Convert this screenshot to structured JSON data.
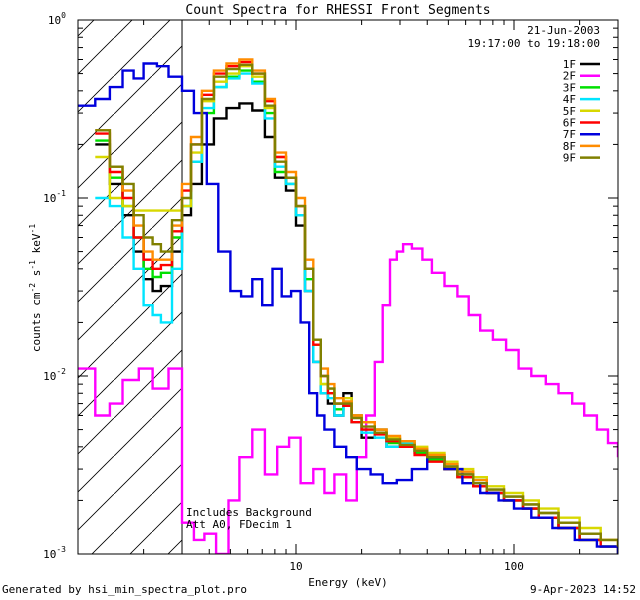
{
  "chart_data": {
    "type": "line",
    "title": "Count Spectra for RHESSI Front Segments",
    "xlabel": "Energy (keV)",
    "ylabel": "counts cm",
    "ylabel_sup1": "-2",
    "ylabel_mid": " s",
    "ylabel_sup2": "-1",
    "ylabel_mid2": " keV",
    "ylabel_sup3": "-1",
    "xscale": "log",
    "yscale": "log",
    "xlim": [
      1.0,
      300.0
    ],
    "ylim": [
      0.001,
      1.0
    ],
    "x_ticks": [
      {
        "value": 10,
        "label": "10"
      },
      {
        "value": 100,
        "label": "100"
      }
    ],
    "y_ticks": [
      {
        "value": 0.001,
        "base": "10",
        "exp": "-3"
      },
      {
        "value": 0.01,
        "base": "10",
        "exp": "-2"
      },
      {
        "value": 0.1,
        "base": "10",
        "exp": "-1"
      },
      {
        "value": 1.0,
        "base": "10",
        "exp": "0"
      }
    ],
    "date": "21-Jun-2003",
    "time_range": "19:17:00 to 19:18:00",
    "annotation_line1": "Includes Background",
    "annotation_line2": "Att A0, FDecim 1",
    "hatched_region_keV": [
      1.0,
      3.0
    ],
    "series": [
      {
        "name": "1F",
        "color": "#000000",
        "x": [
          1.2,
          1.4,
          1.6,
          1.8,
          2.0,
          2.2,
          2.4,
          2.7,
          3.0,
          3.3,
          3.7,
          4.2,
          4.8,
          5.5,
          6.3,
          7.2,
          8.0,
          9.0,
          10.0,
          11.0,
          12.0,
          13.0,
          14.0,
          15.0,
          16.5,
          18.0,
          20.0,
          23.0,
          26.0,
          30.0,
          35.0,
          40.0,
          48.0,
          55.0,
          65.0,
          75.0,
          90.0,
          110.0,
          130.0,
          160.0,
          200.0,
          250.0,
          300.0
        ],
        "y": [
          0.2,
          0.12,
          0.08,
          0.05,
          0.035,
          0.03,
          0.032,
          0.05,
          0.08,
          0.12,
          0.2,
          0.28,
          0.32,
          0.34,
          0.31,
          0.22,
          0.13,
          0.11,
          0.07,
          0.03,
          0.012,
          0.008,
          0.007,
          0.006,
          0.008,
          0.006,
          0.0045,
          0.005,
          0.004,
          0.0042,
          0.0038,
          0.0035,
          0.003,
          0.0028,
          0.0025,
          0.0022,
          0.002,
          0.0018,
          0.0016,
          0.0014,
          0.0012,
          0.0011,
          0.001
        ]
      },
      {
        "name": "2F",
        "color": "#ff00ff",
        "x": [
          1.0,
          1.2,
          1.4,
          1.6,
          1.9,
          2.2,
          2.6,
          3.0,
          3.4,
          3.8,
          4.3,
          4.9,
          5.5,
          6.3,
          7.2,
          8.2,
          9.3,
          10.5,
          12.0,
          13.5,
          15.0,
          17.0,
          19.0,
          21.0,
          23.0,
          25.0,
          27.0,
          29.0,
          31.0,
          34.0,
          38.0,
          42.0,
          48.0,
          55.0,
          62.0,
          70.0,
          80.0,
          92.0,
          105.0,
          120.0,
          140.0,
          160.0,
          185.0,
          210.0,
          240.0,
          270.0,
          300.0
        ],
        "y": [
          0.011,
          0.006,
          0.007,
          0.0095,
          0.011,
          0.0085,
          0.011,
          0.0015,
          0.0012,
          0.0013,
          0.001,
          0.002,
          0.0035,
          0.005,
          0.0028,
          0.004,
          0.0045,
          0.0025,
          0.003,
          0.0022,
          0.0028,
          0.002,
          0.0035,
          0.006,
          0.012,
          0.025,
          0.045,
          0.05,
          0.055,
          0.052,
          0.045,
          0.038,
          0.032,
          0.028,
          0.022,
          0.018,
          0.016,
          0.014,
          0.011,
          0.01,
          0.009,
          0.008,
          0.007,
          0.006,
          0.005,
          0.0042,
          0.0035
        ]
      },
      {
        "name": "3F",
        "color": "#00e000",
        "x": [
          1.2,
          1.4,
          1.6,
          1.8,
          2.0,
          2.2,
          2.4,
          2.7,
          3.0,
          3.3,
          3.7,
          4.2,
          4.8,
          5.5,
          6.3,
          7.2,
          8.0,
          9.0,
          10.0,
          11.0,
          12.0,
          13.0,
          14.0,
          15.0,
          16.5,
          18.0,
          20.0,
          23.0,
          26.0,
          30.0,
          35.0,
          40.0,
          48.0,
          55.0,
          65.0,
          75.0,
          90.0,
          110.0,
          130.0,
          160.0,
          200.0,
          250.0,
          300.0
        ],
        "y": [
          0.21,
          0.13,
          0.09,
          0.06,
          0.04,
          0.036,
          0.038,
          0.06,
          0.09,
          0.16,
          0.3,
          0.42,
          0.48,
          0.52,
          0.45,
          0.3,
          0.14,
          0.12,
          0.08,
          0.035,
          0.015,
          0.009,
          0.008,
          0.0065,
          0.007,
          0.0055,
          0.005,
          0.0048,
          0.0042,
          0.004,
          0.0037,
          0.0034,
          0.003,
          0.0027,
          0.0024,
          0.0022,
          0.002,
          0.0018,
          0.0016,
          0.0014,
          0.0012,
          0.0011,
          0.001
        ]
      },
      {
        "name": "4F",
        "color": "#00e5ff",
        "x": [
          1.2,
          1.4,
          1.6,
          1.8,
          2.0,
          2.2,
          2.4,
          2.7,
          3.0,
          3.3,
          3.7,
          4.2,
          4.8,
          5.5,
          6.3,
          7.2,
          8.0,
          9.0,
          10.0,
          11.0,
          12.0,
          13.0,
          14.0,
          15.0,
          16.5,
          18.0,
          20.0,
          23.0,
          26.0,
          30.0,
          35.0,
          40.0,
          48.0,
          55.0,
          65.0,
          75.0,
          90.0,
          110.0,
          130.0,
          160.0,
          200.0,
          250.0,
          300.0
        ],
        "y": [
          0.1,
          0.09,
          0.06,
          0.04,
          0.025,
          0.022,
          0.02,
          0.04,
          0.09,
          0.16,
          0.32,
          0.42,
          0.47,
          0.5,
          0.44,
          0.28,
          0.15,
          0.12,
          0.08,
          0.03,
          0.012,
          0.008,
          0.0075,
          0.006,
          0.007,
          0.0055,
          0.0048,
          0.0045,
          0.004,
          0.0042,
          0.0038,
          0.0036,
          0.0032,
          0.0029,
          0.0026,
          0.0023,
          0.0021,
          0.0019,
          0.0017,
          0.0015,
          0.0013,
          0.0011,
          0.001
        ]
      },
      {
        "name": "5F",
        "color": "#d8d800",
        "x": [
          1.2,
          1.4,
          1.6,
          1.8,
          2.0,
          2.2,
          2.4,
          2.7,
          3.0,
          3.3,
          3.7,
          4.2,
          4.8,
          5.5,
          6.3,
          7.2,
          8.0,
          9.0,
          10.0,
          11.0,
          12.0,
          13.0,
          14.0,
          15.0,
          16.5,
          18.0,
          20.0,
          23.0,
          26.0,
          30.0,
          35.0,
          40.0,
          48.0,
          55.0,
          65.0,
          75.0,
          90.0,
          110.0,
          130.0,
          160.0,
          200.0,
          250.0,
          300.0
        ],
        "y": [
          0.17,
          0.1,
          0.09,
          0.085,
          0.085,
          0.085,
          0.085,
          0.085,
          0.09,
          0.18,
          0.35,
          0.45,
          0.5,
          0.55,
          0.48,
          0.32,
          0.17,
          0.13,
          0.09,
          0.04,
          0.015,
          0.009,
          0.0085,
          0.007,
          0.0075,
          0.006,
          0.0055,
          0.005,
          0.0045,
          0.0043,
          0.004,
          0.0037,
          0.0033,
          0.003,
          0.0027,
          0.0024,
          0.0022,
          0.002,
          0.0018,
          0.0016,
          0.0014,
          0.0012,
          0.0011
        ]
      },
      {
        "name": "6F",
        "color": "#ff0000",
        "x": [
          1.2,
          1.4,
          1.6,
          1.8,
          2.0,
          2.2,
          2.4,
          2.7,
          3.0,
          3.3,
          3.7,
          4.2,
          4.8,
          5.5,
          6.3,
          7.2,
          8.0,
          9.0,
          10.0,
          11.0,
          12.0,
          13.0,
          14.0,
          15.0,
          16.5,
          18.0,
          20.0,
          23.0,
          26.0,
          30.0,
          35.0,
          40.0,
          48.0,
          55.0,
          65.0,
          75.0,
          90.0,
          110.0,
          130.0,
          160.0,
          200.0,
          250.0,
          300.0
        ],
        "y": [
          0.23,
          0.14,
          0.1,
          0.06,
          0.045,
          0.04,
          0.042,
          0.065,
          0.11,
          0.2,
          0.38,
          0.5,
          0.55,
          0.58,
          0.5,
          0.35,
          0.17,
          0.13,
          0.09,
          0.04,
          0.015,
          0.01,
          0.008,
          0.007,
          0.0068,
          0.0055,
          0.005,
          0.0047,
          0.0043,
          0.004,
          0.0036,
          0.0033,
          0.003,
          0.0027,
          0.0024,
          0.0022,
          0.002,
          0.0018,
          0.0016,
          0.0014,
          0.0012,
          0.0011,
          0.001
        ]
      },
      {
        "name": "7F",
        "color": "#0000dd",
        "x": [
          1.0,
          1.2,
          1.4,
          1.6,
          1.8,
          2.0,
          2.3,
          2.6,
          3.0,
          3.4,
          3.9,
          4.4,
          5.0,
          5.6,
          6.3,
          7.0,
          7.8,
          8.6,
          9.5,
          10.5,
          11.5,
          12.5,
          13.5,
          15.0,
          17.0,
          19.0,
          22.0,
          25.0,
          29.0,
          34.0,
          40.0,
          48.0,
          58.0,
          70.0,
          85.0,
          100.0,
          120.0,
          150.0,
          190.0,
          240.0,
          300.0
        ],
        "y": [
          0.33,
          0.36,
          0.42,
          0.52,
          0.47,
          0.57,
          0.55,
          0.48,
          0.4,
          0.3,
          0.12,
          0.05,
          0.03,
          0.028,
          0.035,
          0.025,
          0.04,
          0.028,
          0.03,
          0.02,
          0.008,
          0.006,
          0.005,
          0.004,
          0.0035,
          0.003,
          0.0028,
          0.0025,
          0.0026,
          0.003,
          0.0035,
          0.003,
          0.0025,
          0.0022,
          0.002,
          0.0018,
          0.0016,
          0.0014,
          0.0012,
          0.0011,
          0.001
        ]
      },
      {
        "name": "8F",
        "color": "#ff8c00",
        "x": [
          1.2,
          1.4,
          1.6,
          1.8,
          2.0,
          2.2,
          2.4,
          2.7,
          3.0,
          3.3,
          3.7,
          4.2,
          4.8,
          5.5,
          6.3,
          7.2,
          8.0,
          9.0,
          10.0,
          11.0,
          12.0,
          13.0,
          14.0,
          15.0,
          16.5,
          18.0,
          20.0,
          23.0,
          26.0,
          30.0,
          35.0,
          40.0,
          48.0,
          55.0,
          65.0,
          75.0,
          90.0,
          110.0,
          130.0,
          160.0,
          200.0,
          250.0,
          300.0
        ],
        "y": [
          0.24,
          0.15,
          0.11,
          0.07,
          0.05,
          0.045,
          0.045,
          0.07,
          0.12,
          0.22,
          0.4,
          0.52,
          0.57,
          0.6,
          0.52,
          0.36,
          0.18,
          0.14,
          0.1,
          0.045,
          0.016,
          0.011,
          0.009,
          0.0075,
          0.0072,
          0.006,
          0.0055,
          0.005,
          0.0046,
          0.0043,
          0.0039,
          0.0036,
          0.0032,
          0.0029,
          0.0026,
          0.0023,
          0.0021,
          0.0019,
          0.0017,
          0.0015,
          0.0013,
          0.0012,
          0.0011
        ]
      },
      {
        "name": "9F",
        "color": "#808000",
        "x": [
          1.2,
          1.4,
          1.6,
          1.8,
          2.0,
          2.2,
          2.4,
          2.7,
          3.0,
          3.3,
          3.7,
          4.2,
          4.8,
          5.5,
          6.3,
          7.2,
          8.0,
          9.0,
          10.0,
          11.0,
          12.0,
          13.0,
          14.0,
          15.0,
          16.5,
          18.0,
          20.0,
          23.0,
          26.0,
          30.0,
          35.0,
          40.0,
          48.0,
          55.0,
          65.0,
          75.0,
          90.0,
          110.0,
          130.0,
          160.0,
          200.0,
          250.0,
          300.0
        ],
        "y": [
          0.24,
          0.15,
          0.12,
          0.08,
          0.06,
          0.055,
          0.05,
          0.075,
          0.1,
          0.2,
          0.36,
          0.48,
          0.53,
          0.56,
          0.5,
          0.33,
          0.16,
          0.13,
          0.09,
          0.04,
          0.016,
          0.01,
          0.0085,
          0.007,
          0.007,
          0.0058,
          0.0052,
          0.0048,
          0.0044,
          0.0041,
          0.0038,
          0.0035,
          0.0031,
          0.0028,
          0.0025,
          0.0023,
          0.0021,
          0.0019,
          0.0017,
          0.0015,
          0.0013,
          0.0012,
          0.0011
        ]
      }
    ]
  },
  "footer": {
    "left": "Generated by hsi_min_spectra_plot.pro",
    "right": "9-Apr-2023 14:52"
  }
}
